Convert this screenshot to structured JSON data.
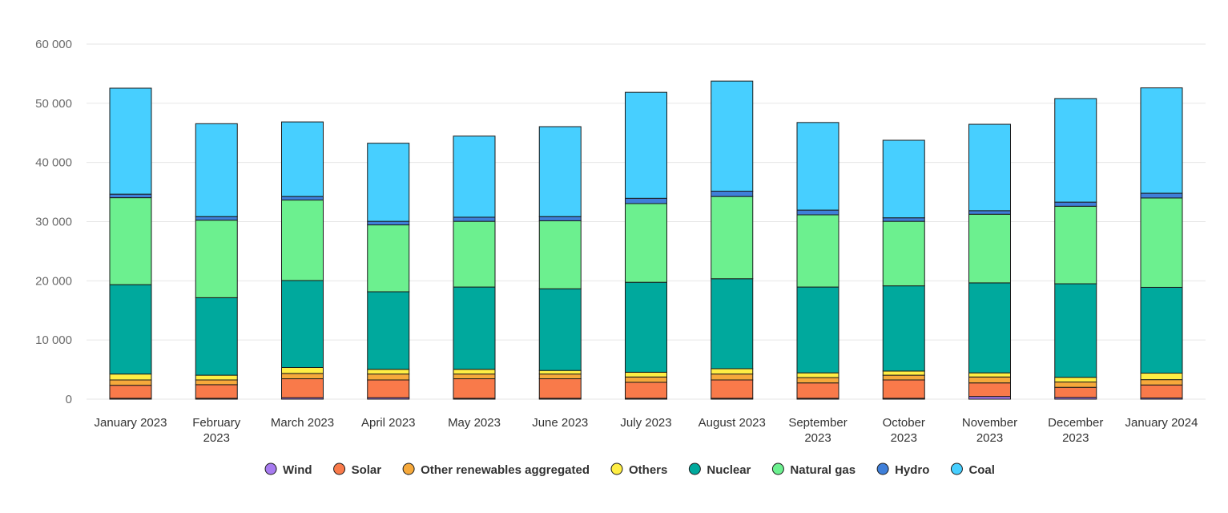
{
  "chart_data": {
    "type": "bar",
    "stacked": true,
    "title": "",
    "xlabel": "",
    "ylabel": "",
    "ylim": [
      0,
      60000
    ],
    "yticks": [
      0,
      10000,
      20000,
      30000,
      40000,
      50000,
      60000
    ],
    "ytick_labels": [
      "0",
      "10 000",
      "20 000",
      "30 000",
      "40 000",
      "50 000",
      "60 000"
    ],
    "grid": true,
    "legend_position": "bottom",
    "categories": [
      [
        "January 2023"
      ],
      [
        "February",
        "2023"
      ],
      [
        "March 2023"
      ],
      [
        "April 2023"
      ],
      [
        "May 2023"
      ],
      [
        "June 2023"
      ],
      [
        "July 2023"
      ],
      [
        "August 2023"
      ],
      [
        "September",
        "2023"
      ],
      [
        "October",
        "2023"
      ],
      [
        "November",
        "2023"
      ],
      [
        "December",
        "2023"
      ],
      [
        "January 2024"
      ]
    ],
    "series": [
      {
        "name": "Wind",
        "color": "#a77bf0",
        "values": [
          150,
          150,
          250,
          250,
          150,
          150,
          150,
          150,
          150,
          150,
          450,
          300,
          200
        ]
      },
      {
        "name": "Solar",
        "color": "#f97a4a",
        "values": [
          2200,
          2300,
          3200,
          3000,
          3300,
          3300,
          2700,
          3100,
          2600,
          3100,
          2300,
          1700,
          2200
        ]
      },
      {
        "name": "Other renewables aggregated",
        "color": "#f6a93b",
        "values": [
          900,
          800,
          900,
          1000,
          800,
          800,
          900,
          1000,
          900,
          800,
          1000,
          900,
          900
        ]
      },
      {
        "name": "Others",
        "color": "#ffee44",
        "values": [
          1000,
          800,
          1000,
          800,
          800,
          600,
          800,
          900,
          800,
          700,
          700,
          800,
          1100
        ]
      },
      {
        "name": "Nuclear",
        "color": "#00a99d",
        "values": [
          15100,
          13100,
          14700,
          13100,
          13900,
          13800,
          15200,
          15200,
          14500,
          14400,
          15200,
          15800,
          14500
        ]
      },
      {
        "name": "Natural gas",
        "color": "#6cf08f",
        "values": [
          14700,
          13100,
          13600,
          11300,
          11100,
          11500,
          13300,
          13900,
          12200,
          10900,
          11600,
          13100,
          15100
        ]
      },
      {
        "name": "Hydro",
        "color": "#3f7fd9",
        "values": [
          600,
          600,
          600,
          600,
          700,
          700,
          900,
          900,
          800,
          600,
          600,
          700,
          800
        ]
      },
      {
        "name": "Coal",
        "color": "#47cfff",
        "values": [
          17900,
          15700,
          12600,
          13200,
          13700,
          15200,
          17900,
          18600,
          14800,
          13100,
          14600,
          17500,
          17800
        ]
      }
    ]
  }
}
